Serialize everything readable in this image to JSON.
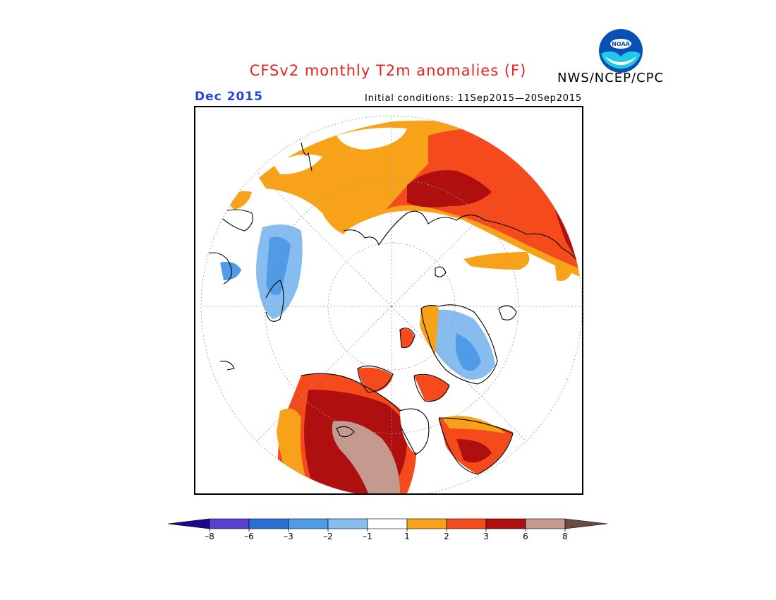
{
  "title": "CFSv2 monthly T2m anomalies (F)",
  "organization": "NWS/NCEP/CPC",
  "logo_text": "NOAA",
  "month": "Dec 2015",
  "initial_conditions": "Initial conditions: 11Sep2015—20Sep2015",
  "legend": {
    "bins": [
      {
        "color": "#1a0a8c"
      },
      {
        "color": "#5a3fd0"
      },
      {
        "color": "#2a6fd4"
      },
      {
        "color": "#4f9be6"
      },
      {
        "color": "#86bdee"
      },
      {
        "color": "#ffffff"
      },
      {
        "color": "#f7a218"
      },
      {
        "color": "#f54a1b"
      },
      {
        "color": "#b00f0f"
      },
      {
        "color": "#c49a8e"
      },
      {
        "color": "#6b4a40"
      }
    ],
    "ticks": [
      "–8",
      "–6",
      "–3",
      "–2",
      "–1",
      "1",
      "2",
      "3",
      "6",
      "8"
    ]
  }
}
